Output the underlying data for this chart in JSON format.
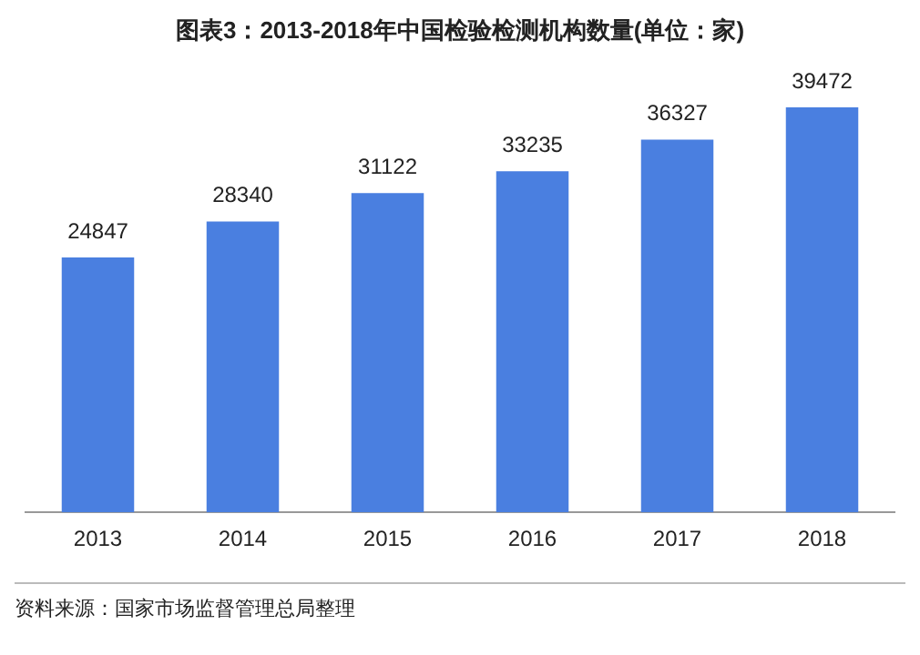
{
  "chart_data": {
    "type": "bar",
    "title": "图表3：2013-2018年中国检验检测机构数量(单位：家)",
    "categories": [
      "2013",
      "2014",
      "2015",
      "2016",
      "2017",
      "2018"
    ],
    "values": [
      24847,
      28340,
      31122,
      33235,
      36327,
      39472
    ],
    "color": "#4a7fe0",
    "data_labels": true,
    "grid": false,
    "legend": false,
    "annotations": [
      "资料来源：国家市场监督管理总局整理"
    ]
  }
}
